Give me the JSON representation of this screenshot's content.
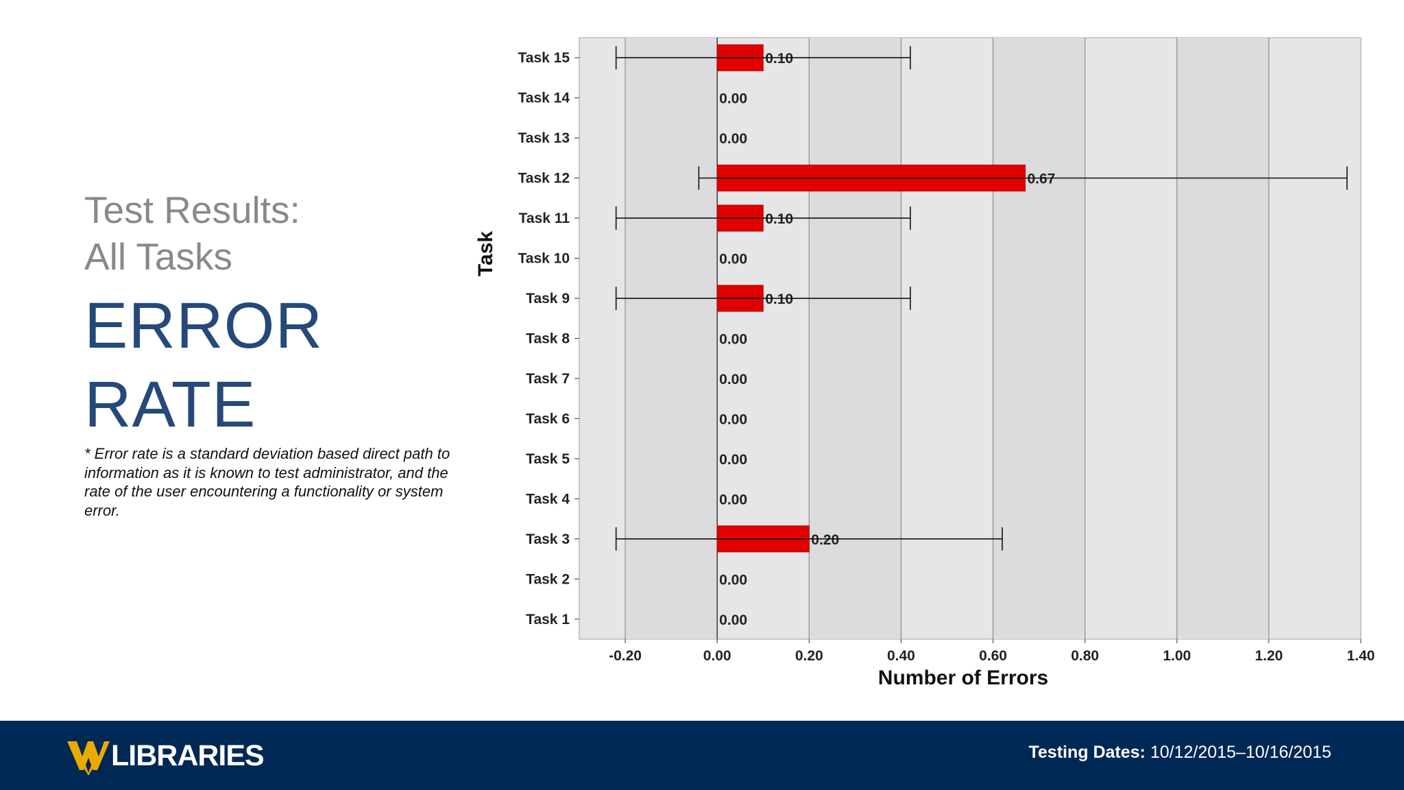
{
  "slide": {
    "subtitle_line1": "Test Results:",
    "subtitle_line2": "All Tasks",
    "headline_line1": "ERROR",
    "headline_line2": "RATE",
    "note": "* Error rate is a standard deviation based direct path to information as it is known to test administrator, and the rate of the user encountering a functionality or system error."
  },
  "footer": {
    "logo_text": "LIBRARIES",
    "testing_label": "Testing Dates:",
    "testing_value": "10/12/2015–10/16/2015"
  },
  "colors": {
    "bar": "#e00000",
    "headline": "#24497a",
    "footer_bg": "#002855",
    "logo_gold": "#eaaa00",
    "plot_band_light": "#e6e5e7",
    "plot_band_dark": "#dcdbdd"
  },
  "chart_data": {
    "type": "bar",
    "orientation": "horizontal",
    "title": "",
    "xlabel": "Number of Errors",
    "ylabel": "Task",
    "xlim": [
      -0.3,
      1.4
    ],
    "xticks": [
      "-0.20",
      "0.00",
      "0.20",
      "0.40",
      "0.60",
      "0.80",
      "1.00",
      "1.20",
      "1.40"
    ],
    "grid": true,
    "categories": [
      "Task 15",
      "Task 14",
      "Task 13",
      "Task 12",
      "Task 11",
      "Task 10",
      "Task 9",
      "Task 8",
      "Task 7",
      "Task 6",
      "Task 5",
      "Task 4",
      "Task 3",
      "Task 2",
      "Task 1"
    ],
    "values": [
      0.1,
      0.0,
      0.0,
      0.67,
      0.1,
      0.0,
      0.1,
      0.0,
      0.0,
      0.0,
      0.0,
      0.0,
      0.2,
      0.0,
      0.0
    ],
    "value_labels": [
      "0.10",
      "0.00",
      "0.00",
      "0.67",
      "0.10",
      "0.00",
      "0.10",
      "0.00",
      "0.00",
      "0.00",
      "0.00",
      "0.00",
      "0.20",
      "0.00",
      "0.00"
    ],
    "error_bars": [
      {
        "task": "Task 15",
        "low": -0.22,
        "high": 0.42
      },
      {
        "task": "Task 12",
        "low": -0.04,
        "high": 1.37
      },
      {
        "task": "Task 11",
        "low": -0.22,
        "high": 0.42
      },
      {
        "task": "Task 9",
        "low": -0.22,
        "high": 0.42
      },
      {
        "task": "Task 3",
        "low": -0.22,
        "high": 0.62
      }
    ]
  }
}
